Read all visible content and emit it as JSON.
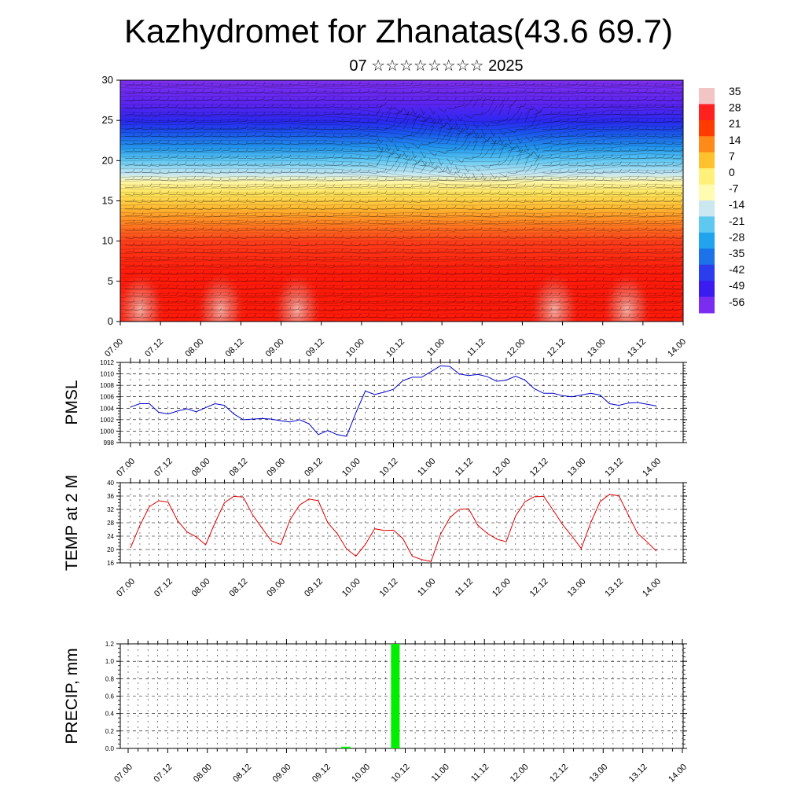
{
  "title": "Kazhydromet for Zhanatas(43.6 69.7)",
  "subtitle": "07 ☆☆☆☆☆☆☆☆ 2025",
  "x_ticks": [
    "07.00",
    "07.12",
    "08.00",
    "08.12",
    "09.00",
    "09.12",
    "10.00",
    "10.12",
    "11.00",
    "11.12",
    "12.00",
    "12.12",
    "13.00",
    "13.12",
    "14.00"
  ],
  "colors": {
    "pmsl_line": "#0000cc",
    "temp_line": "#dd0000",
    "precip_bar": "#00ee00"
  },
  "chart_data": [
    {
      "type": "heatmap",
      "title": "",
      "ylim": [
        0,
        30
      ],
      "y_ticks": [
        0,
        5,
        10,
        15,
        20,
        25,
        30
      ],
      "x": [
        "07.00",
        "07.12",
        "08.00",
        "08.12",
        "09.00",
        "09.12",
        "10.00",
        "10.12",
        "11.00",
        "11.12",
        "12.00",
        "12.12",
        "13.00",
        "13.12",
        "14.00"
      ],
      "colorbar_labels": [
        "35",
        "28",
        "21",
        "14",
        "7",
        "0",
        "-7",
        "-14",
        "-21",
        "-28",
        "-35",
        "-42",
        "-49",
        "-56"
      ],
      "colorbar_colors": [
        "#f2c4c4",
        "#ff2020",
        "#ff3b00",
        "#ff8a1a",
        "#ffc22e",
        "#fff07a",
        "#fffbb0",
        "#cbe7ef",
        "#5ec8f0",
        "#21a3ee",
        "#1b72e9",
        "#2c3df0",
        "#3a1cf0",
        "#7a2df0"
      ],
      "legend": "right"
    },
    {
      "type": "line",
      "ylabel": "PMSL",
      "ylim": [
        998,
        1012
      ],
      "y_ticks": [
        998,
        1000,
        1002,
        1004,
        1006,
        1008,
        1010,
        1012
      ],
      "values": [
        1004.2,
        1004.8,
        1004.8,
        1003.3,
        1003.0,
        1003.5,
        1003.9,
        1003.4,
        1004.1,
        1004.8,
        1004.5,
        1003.0,
        1002.0,
        1002.1,
        1002.2,
        1002.1,
        1001.8,
        1001.6,
        1002.0,
        1001.3,
        999.4,
        1000.1,
        999.4,
        999.1,
        1003.2,
        1007.0,
        1006.4,
        1006.8,
        1007.3,
        1008.8,
        1009.4,
        1009.4,
        1010.4,
        1011.4,
        1011.3,
        1010.0,
        1009.7,
        1009.9,
        1009.5,
        1008.7,
        1008.9,
        1009.6,
        1008.9,
        1007.4,
        1006.6,
        1006.6,
        1006.2,
        1006.0,
        1006.3,
        1006.6,
        1006.3,
        1004.8,
        1004.5,
        1004.9,
        1005.0,
        1004.7,
        1004.4
      ]
    },
    {
      "type": "line",
      "ylabel": "TEMP at 2 M",
      "ylim": [
        16,
        40
      ],
      "y_ticks": [
        16,
        20,
        24,
        28,
        32,
        36,
        40
      ],
      "values": [
        20.5,
        27.2,
        32.8,
        34.6,
        34.2,
        28.7,
        25.3,
        23.8,
        21.4,
        28.0,
        34.0,
        35.9,
        35.7,
        30.4,
        26.4,
        22.6,
        21.5,
        29.0,
        33.3,
        35.1,
        34.6,
        28.0,
        24.8,
        20.2,
        18.0,
        21.5,
        26.2,
        25.7,
        25.8,
        23.3,
        18.0,
        17.0,
        16.4,
        24.5,
        29.5,
        32.0,
        32.2,
        27.2,
        24.8,
        23.1,
        22.3,
        30.0,
        34.3,
        35.8,
        35.9,
        31.8,
        27.5,
        24.0,
        20.3,
        28.0,
        34.3,
        36.5,
        36.1,
        30.4,
        24.8,
        22.3,
        19.5
      ]
    },
    {
      "type": "bar",
      "ylabel": "PRECIP, mm",
      "ylim": [
        0,
        1.2
      ],
      "y_ticks": [
        "0.0",
        "0.2",
        "0.4",
        "0.6",
        "0.8",
        "1.0",
        "1.2"
      ],
      "bars": [
        {
          "x": "09.12 +6h",
          "value": 0.02
        },
        {
          "x": "10.00 +9h",
          "value": 1.2
        }
      ]
    }
  ]
}
